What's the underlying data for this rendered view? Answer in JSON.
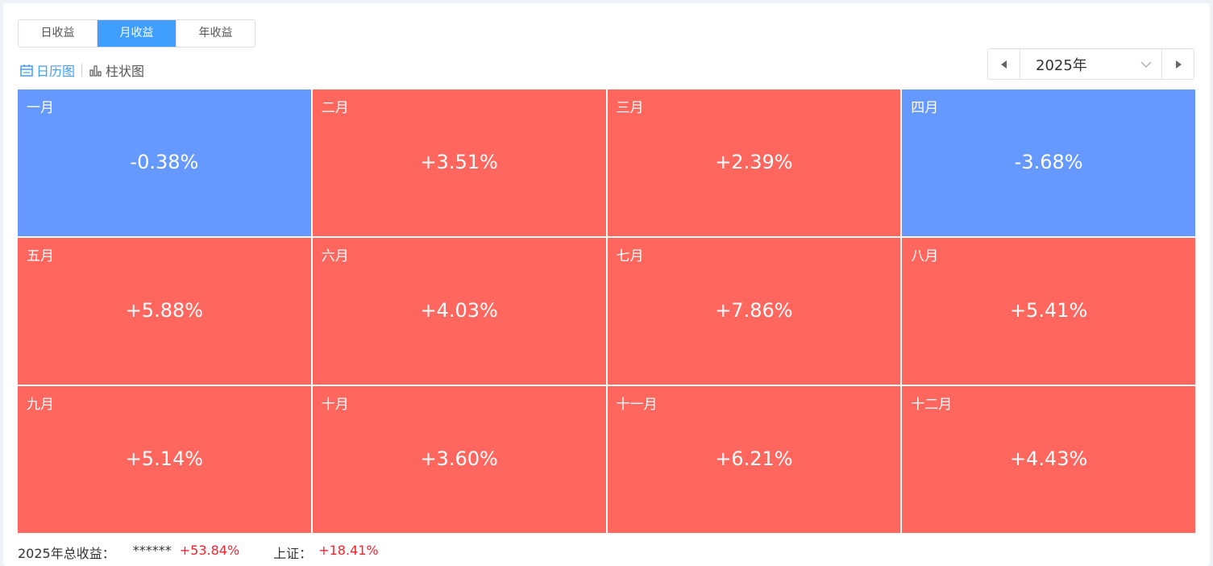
{
  "tabs": {
    "items": [
      "日收益",
      "月收益",
      "年收益"
    ],
    "active": 1
  },
  "view_toggle": {
    "items": [
      "日历图",
      "柱状图"
    ],
    "active": 0
  },
  "year_selector": {
    "value": "2025年"
  },
  "months": [
    {
      "name": "一月",
      "value": "-0.38%"
    },
    {
      "name": "二月",
      "value": "+3.51%"
    },
    {
      "name": "三月",
      "value": "+2.39%"
    },
    {
      "name": "四月",
      "value": "-3.68%"
    },
    {
      "name": "五月",
      "value": "+5.88%"
    },
    {
      "name": "六月",
      "value": "+4.03%"
    },
    {
      "name": "七月",
      "value": "+7.86%"
    },
    {
      "name": "八月",
      "value": "+5.41%"
    },
    {
      "name": "九月",
      "value": "+5.14%"
    },
    {
      "name": "十月",
      "value": "+3.60%"
    },
    {
      "name": "十一月",
      "value": "+6.21%"
    },
    {
      "name": "十二月",
      "value": "+4.43%"
    }
  ],
  "colors": {
    "gain": "#ff665e",
    "loss": "#6699ff"
  },
  "footer": {
    "total_label": "2025年总收益：",
    "masked": "******",
    "total_value": "+53.84%",
    "index_label": "上证：",
    "index_value": "+18.41%"
  }
}
